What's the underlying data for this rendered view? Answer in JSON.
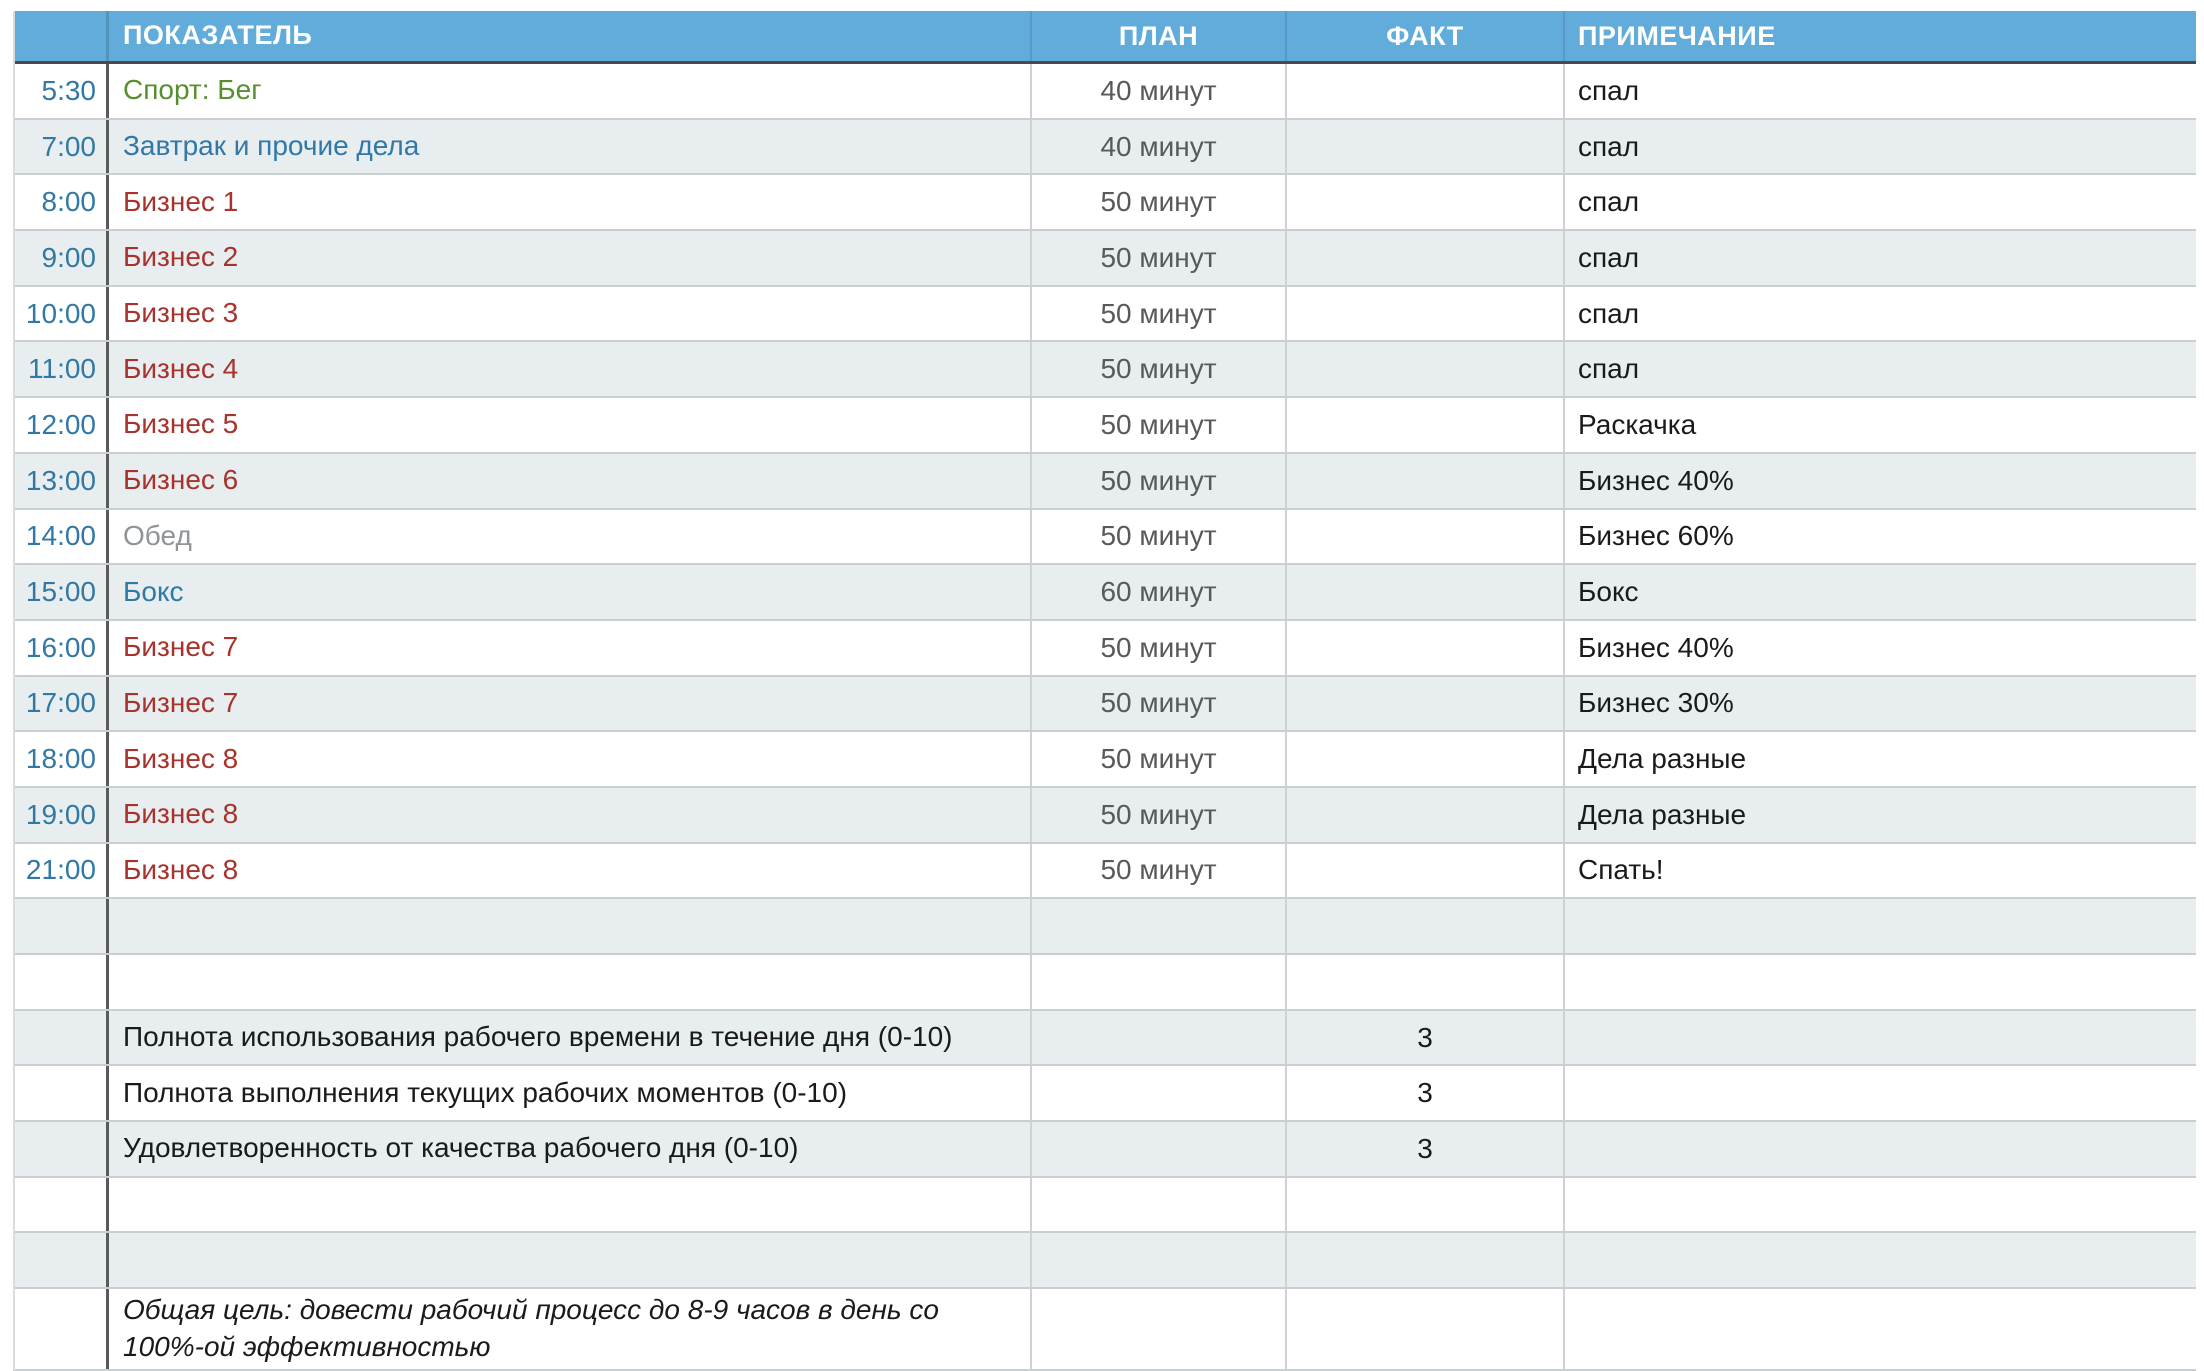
{
  "palette": {
    "header_bg": "#62ACDC",
    "header_text": "#FFFFFF",
    "zebra_shaded": "#E8EDF0",
    "zebra_plain": "#FFFFFF",
    "time_text": "#3178A4",
    "plan_text": "#58595B",
    "note_text": "#1A1A1A",
    "grid_light": "#C9CED1",
    "grid_dark": "#595A5C",
    "green": "#588F2E",
    "blue": "#3079A6",
    "red": "#A8322C",
    "gray": "#8F9498",
    "dark": "#1A1A1A"
  },
  "header": {
    "time": "",
    "indicator": "ПОКАЗАТЕЛЬ",
    "plan": "ПЛАН",
    "fact": "ФАКТ",
    "note": "ПРИМЕЧАНИЕ"
  },
  "rows": [
    {
      "time": "5:30",
      "indicator": "Спорт: Бег",
      "color": "green",
      "plan": "40 минут",
      "fact": "",
      "note": "спал"
    },
    {
      "time": "7:00",
      "indicator": "Завтрак и прочие дела",
      "color": "blue",
      "plan": "40 минут",
      "fact": "",
      "note": "спал"
    },
    {
      "time": "8:00",
      "indicator": "Бизнес 1",
      "color": "red",
      "plan": "50 минут",
      "fact": "",
      "note": "спал"
    },
    {
      "time": "9:00",
      "indicator": "Бизнес 2",
      "color": "red",
      "plan": "50 минут",
      "fact": "",
      "note": "спал"
    },
    {
      "time": "10:00",
      "indicator": "Бизнес 3",
      "color": "red",
      "plan": "50 минут",
      "fact": "",
      "note": "спал"
    },
    {
      "time": "11:00",
      "indicator": "Бизнес 4",
      "color": "red",
      "plan": "50 минут",
      "fact": "",
      "note": "спал"
    },
    {
      "time": "12:00",
      "indicator": "Бизнес 5",
      "color": "red",
      "plan": "50 минут",
      "fact": "",
      "note": "Раскачка"
    },
    {
      "time": "13:00",
      "indicator": "Бизнес 6",
      "color": "red",
      "plan": "50 минут",
      "fact": "",
      "note": "Бизнес 40%"
    },
    {
      "time": "14:00",
      "indicator": "Обед",
      "color": "gray",
      "plan": "50 минут",
      "fact": "",
      "note": "Бизнес 60%"
    },
    {
      "time": "15:00",
      "indicator": "Бокс",
      "color": "blue",
      "plan": "60 минут",
      "fact": "",
      "note": "Бокс"
    },
    {
      "time": "16:00",
      "indicator": "Бизнес 7",
      "color": "red",
      "plan": "50 минут",
      "fact": "",
      "note": "Бизнес 40%"
    },
    {
      "time": "17:00",
      "indicator": "Бизнес 7",
      "color": "red",
      "plan": "50 минут",
      "fact": "",
      "note": "Бизнес 30%"
    },
    {
      "time": "18:00",
      "indicator": "Бизнес 8",
      "color": "red",
      "plan": "50 минут",
      "fact": "",
      "note": "Дела разные"
    },
    {
      "time": "19:00",
      "indicator": "Бизнес 8",
      "color": "red",
      "plan": "50 минут",
      "fact": "",
      "note": "Дела разные"
    },
    {
      "time": "21:00",
      "indicator": "Бизнес 8",
      "color": "red",
      "plan": "50 минут",
      "fact": "",
      "note": "Спать!"
    },
    {
      "time": "",
      "indicator": "",
      "plan": "",
      "fact": "",
      "note": ""
    },
    {
      "time": "",
      "indicator": "",
      "plan": "",
      "fact": "",
      "note": ""
    },
    {
      "time": "",
      "indicator": "Полнота использования рабочего времени в течение дня (0-10)",
      "color": "dark",
      "plan": "",
      "fact": "3",
      "note": ""
    },
    {
      "time": "",
      "indicator": "Полнота выполнения текущих рабочих моментов (0-10)",
      "color": "dark",
      "plan": "",
      "fact": "3",
      "note": ""
    },
    {
      "time": "",
      "indicator": "Удовлетворенность от качества рабочего дня (0-10)",
      "color": "dark",
      "plan": "",
      "fact": "3",
      "note": ""
    },
    {
      "time": "",
      "indicator": "",
      "plan": "",
      "fact": "",
      "note": ""
    },
    {
      "time": "",
      "indicator": "",
      "plan": "",
      "fact": "",
      "note": ""
    },
    {
      "time": "",
      "indicator": "Общая цель: довести рабочий процесс до 8-9 часов в день со 100%-ой эффективностью",
      "color": "dark",
      "italic": true,
      "tall": true,
      "plan": "",
      "fact": "",
      "note": ""
    }
  ]
}
